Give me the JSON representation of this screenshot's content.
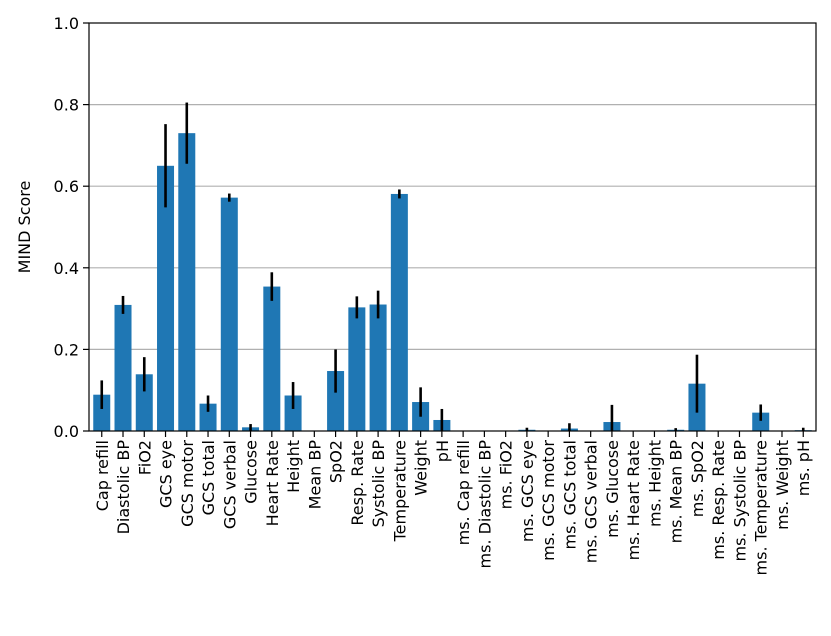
{
  "chart_data": {
    "type": "bar",
    "title": "",
    "xlabel": "",
    "ylabel": "MIND Score",
    "ylim": [
      0,
      1.0
    ],
    "yticks": [
      "0.0",
      "0.2",
      "0.4",
      "0.6",
      "0.8",
      "1.0"
    ],
    "grid": "horizontal",
    "bar_color": "#1f77b4",
    "error_color": "#000000",
    "categories": [
      "Cap refill",
      "Diastolic BP",
      "FiO2",
      "GCS eye",
      "GCS motor",
      "GCS total",
      "GCS verbal",
      "Glucose",
      "Heart Rate",
      "Height",
      "Mean BP",
      "SpO2",
      "Resp. Rate",
      "Systolic BP",
      "Temperature",
      "Weight",
      "pH",
      "ms. Cap refill",
      "ms. Diastolic BP",
      "ms. FiO2",
      "ms. GCS eye",
      "ms. GCS motor",
      "ms. GCS total",
      "ms. GCS verbal",
      "ms. Glucose",
      "ms. Heart Rate",
      "ms. Height",
      "ms. Mean BP",
      "ms. SpO2",
      "ms. Resp. Rate",
      "ms. Systolic BP",
      "ms. Temperature",
      "ms. Weight",
      "ms. pH"
    ],
    "values": [
      0.089,
      0.309,
      0.139,
      0.65,
      0.73,
      0.067,
      0.572,
      0.009,
      0.354,
      0.087,
      0.0,
      0.147,
      0.303,
      0.31,
      0.581,
      0.071,
      0.027,
      0.0,
      0.0,
      0.0,
      0.003,
      0.0,
      0.006,
      0.0,
      0.022,
      0.0,
      0.0,
      0.003,
      0.116,
      0.0,
      0.0,
      0.045,
      0.0,
      0.002
    ],
    "errors": [
      0.035,
      0.022,
      0.042,
      0.102,
      0.075,
      0.02,
      0.01,
      0.008,
      0.035,
      0.033,
      0.0,
      0.053,
      0.027,
      0.034,
      0.011,
      0.036,
      0.027,
      0.0,
      0.0,
      0.0,
      0.005,
      0.0,
      0.013,
      0.0,
      0.042,
      0.0,
      0.0,
      0.004,
      0.071,
      0.0,
      0.0,
      0.02,
      0.0,
      0.006
    ]
  }
}
